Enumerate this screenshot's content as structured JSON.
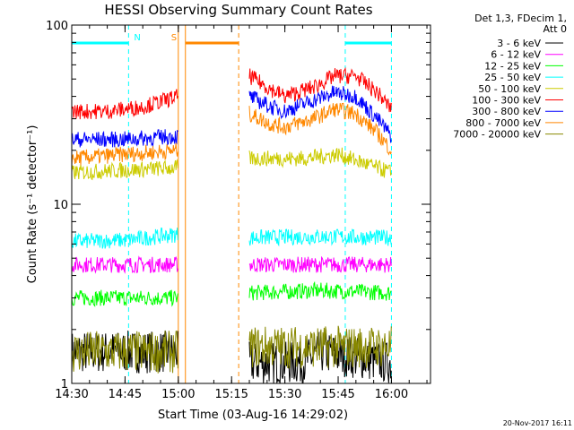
{
  "chart_data": {
    "type": "line",
    "title": "HESSI Observing Summary Count Rates",
    "xlabel": "Start Time (03-Aug-16 14:29:02)",
    "ylabel": "Count Rate (s⁻¹ detector⁻¹)",
    "x_tick_labels": [
      "14:30",
      "14:45",
      "15:00",
      "15:15",
      "15:30",
      "15:45",
      "16:00"
    ],
    "x_ticks_min": [
      0,
      15,
      30,
      45,
      60,
      75,
      90
    ],
    "xlim_min": [
      0,
      101
    ],
    "y_scale": "log",
    "ylim": [
      1,
      100
    ],
    "y_tick_labels": [
      "1",
      "10",
      "100"
    ],
    "legend_header": [
      "Det 1,3, FDecim 1,",
      "Att 0"
    ],
    "legend_position": "right",
    "series": [
      {
        "name": "3 - 6 keV",
        "color": "#000000",
        "segments": [
          [
            [
              0,
              1.5
            ],
            [
              15,
              1.5
            ],
            [
              30,
              1.5
            ]
          ],
          [
            [
              50,
              1.3
            ],
            [
              65,
              1.3
            ],
            [
              70,
              1.5
            ],
            [
              90,
              1.3
            ]
          ]
        ]
      },
      {
        "name": "6 - 12 keV",
        "color": "#ff00ff",
        "segments": [
          [
            [
              0,
              4.6
            ],
            [
              15,
              4.6
            ],
            [
              30,
              4.6
            ]
          ],
          [
            [
              50,
              4.6
            ],
            [
              70,
              4.6
            ],
            [
              90,
              4.6
            ]
          ]
        ]
      },
      {
        "name": "12 - 25 keV",
        "color": "#00ff00",
        "segments": [
          [
            [
              0,
              3.0
            ],
            [
              15,
              3.0
            ],
            [
              30,
              3.0
            ]
          ],
          [
            [
              50,
              3.2
            ],
            [
              70,
              3.3
            ],
            [
              90,
              3.2
            ]
          ]
        ]
      },
      {
        "name": "25 - 50 keV",
        "color": "#00ffff",
        "segments": [
          [
            [
              0,
              6.2
            ],
            [
              15,
              6.3
            ],
            [
              30,
              6.8
            ]
          ],
          [
            [
              50,
              6.5
            ],
            [
              70,
              6.6
            ],
            [
              90,
              6.5
            ]
          ]
        ]
      },
      {
        "name": "50 - 100 keV",
        "color": "#cccc00",
        "segments": [
          [
            [
              0,
              15
            ],
            [
              15,
              15.5
            ],
            [
              30,
              16
            ]
          ],
          [
            [
              50,
              18
            ],
            [
              65,
              18
            ],
            [
              75,
              19
            ],
            [
              90,
              15
            ]
          ]
        ]
      },
      {
        "name": "100 - 300 keV",
        "color": "#ff0000",
        "segments": [
          [
            [
              0,
              33
            ],
            [
              10,
              33
            ],
            [
              20,
              35
            ],
            [
              30,
              40
            ]
          ],
          [
            [
              50,
              52
            ],
            [
              56,
              44
            ],
            [
              60,
              40
            ],
            [
              68,
              45
            ],
            [
              74,
              52
            ],
            [
              80,
              52
            ],
            [
              86,
              42
            ],
            [
              90,
              34
            ]
          ]
        ]
      },
      {
        "name": "300 - 800 keV",
        "color": "#0000ff",
        "segments": [
          [
            [
              0,
              23
            ],
            [
              15,
              23
            ],
            [
              30,
              24
            ]
          ],
          [
            [
              50,
              40
            ],
            [
              56,
              35
            ],
            [
              60,
              33
            ],
            [
              68,
              38
            ],
            [
              74,
              42
            ],
            [
              80,
              40
            ],
            [
              86,
              30
            ],
            [
              90,
              24
            ]
          ]
        ]
      },
      {
        "name": "800 - 7000 keV",
        "color": "#ff8800",
        "segments": [
          [
            [
              0,
              18
            ],
            [
              15,
              19
            ],
            [
              30,
              20
            ]
          ],
          [
            [
              50,
              32
            ],
            [
              56,
              28
            ],
            [
              60,
              27
            ],
            [
              68,
              30
            ],
            [
              74,
              34
            ],
            [
              80,
              32
            ],
            [
              86,
              25
            ],
            [
              90,
              20
            ]
          ]
        ]
      },
      {
        "name": "7000 - 20000 keV",
        "color": "#888800",
        "segments": [
          [
            [
              0,
              1.5
            ],
            [
              15,
              1.5
            ],
            [
              30,
              1.5
            ]
          ],
          [
            [
              50,
              1.6
            ],
            [
              70,
              1.6
            ],
            [
              90,
              1.6
            ]
          ]
        ]
      }
    ],
    "annotations": [
      {
        "label": "N",
        "color": "#00ffff",
        "x_min": 17,
        "bars_min": [
          [
            0,
            16
          ],
          [
            77,
            90
          ]
        ],
        "vlines_min": [
          16,
          77,
          90
        ]
      },
      {
        "label": "S",
        "color": "#ff8800",
        "x_min": 30,
        "bars_min": [
          [
            32,
            47
          ]
        ],
        "vlines_min": [
          30,
          32,
          47
        ]
      }
    ]
  },
  "footer": {
    "timestamp": "20-Nov-2017 16:11"
  }
}
